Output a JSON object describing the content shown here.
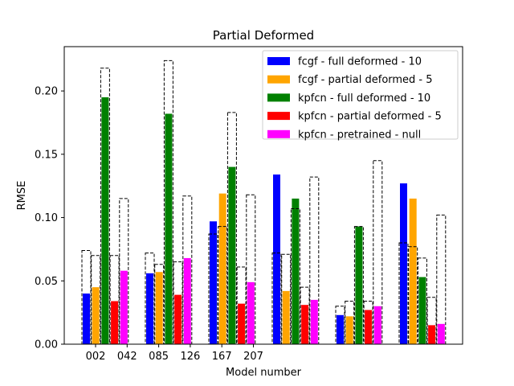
{
  "chart_data": {
    "type": "bar",
    "title": "Partial Deformed",
    "xlabel": "Model number",
    "ylabel": "RMSE",
    "ylim": [
      0,
      0.235
    ],
    "yticks": [
      "0.00",
      "0.05",
      "0.10",
      "0.15",
      "0.20"
    ],
    "ytick_values": [
      0,
      0.05,
      0.1,
      0.15,
      0.2
    ],
    "xtick_labels": [
      "002",
      "042",
      "085",
      "126",
      "167",
      "207"
    ],
    "legend_position": "upper right",
    "groups": 6,
    "series": [
      {
        "name": "fcgf - full deformed - 10",
        "color": "#0000ff",
        "values": [
          0.04,
          0.056,
          0.097,
          0.134,
          0.023,
          0.127
        ],
        "outline": [
          0.074,
          0.072,
          0.087,
          0.072,
          0.03,
          0.08
        ]
      },
      {
        "name": "fcgf - partial deformed - 5",
        "color": "#ffa500",
        "values": [
          0.045,
          0.057,
          0.119,
          0.042,
          0.022,
          0.115
        ],
        "outline": [
          0.07,
          0.063,
          0.093,
          0.071,
          0.034,
          0.077
        ]
      },
      {
        "name": "kpfcn - full deformed - 10",
        "color": "#008000",
        "values": [
          0.195,
          0.182,
          0.14,
          0.115,
          0.093,
          0.053
        ],
        "outline": [
          0.218,
          0.224,
          0.183,
          0.107,
          0.093,
          0.068
        ]
      },
      {
        "name": "kpfcn - partial deformed - 5",
        "color": "#ff0000",
        "values": [
          0.034,
          0.039,
          0.032,
          0.031,
          0.027,
          0.015
        ],
        "outline": [
          0.07,
          0.065,
          0.061,
          0.045,
          0.034,
          0.037
        ]
      },
      {
        "name": "kpfcn - pretrained - null",
        "color": "#ff00ff",
        "values": [
          0.058,
          0.068,
          0.049,
          0.035,
          0.03,
          0.016
        ],
        "outline": [
          0.115,
          0.117,
          0.118,
          0.132,
          0.145,
          0.102
        ]
      }
    ]
  }
}
